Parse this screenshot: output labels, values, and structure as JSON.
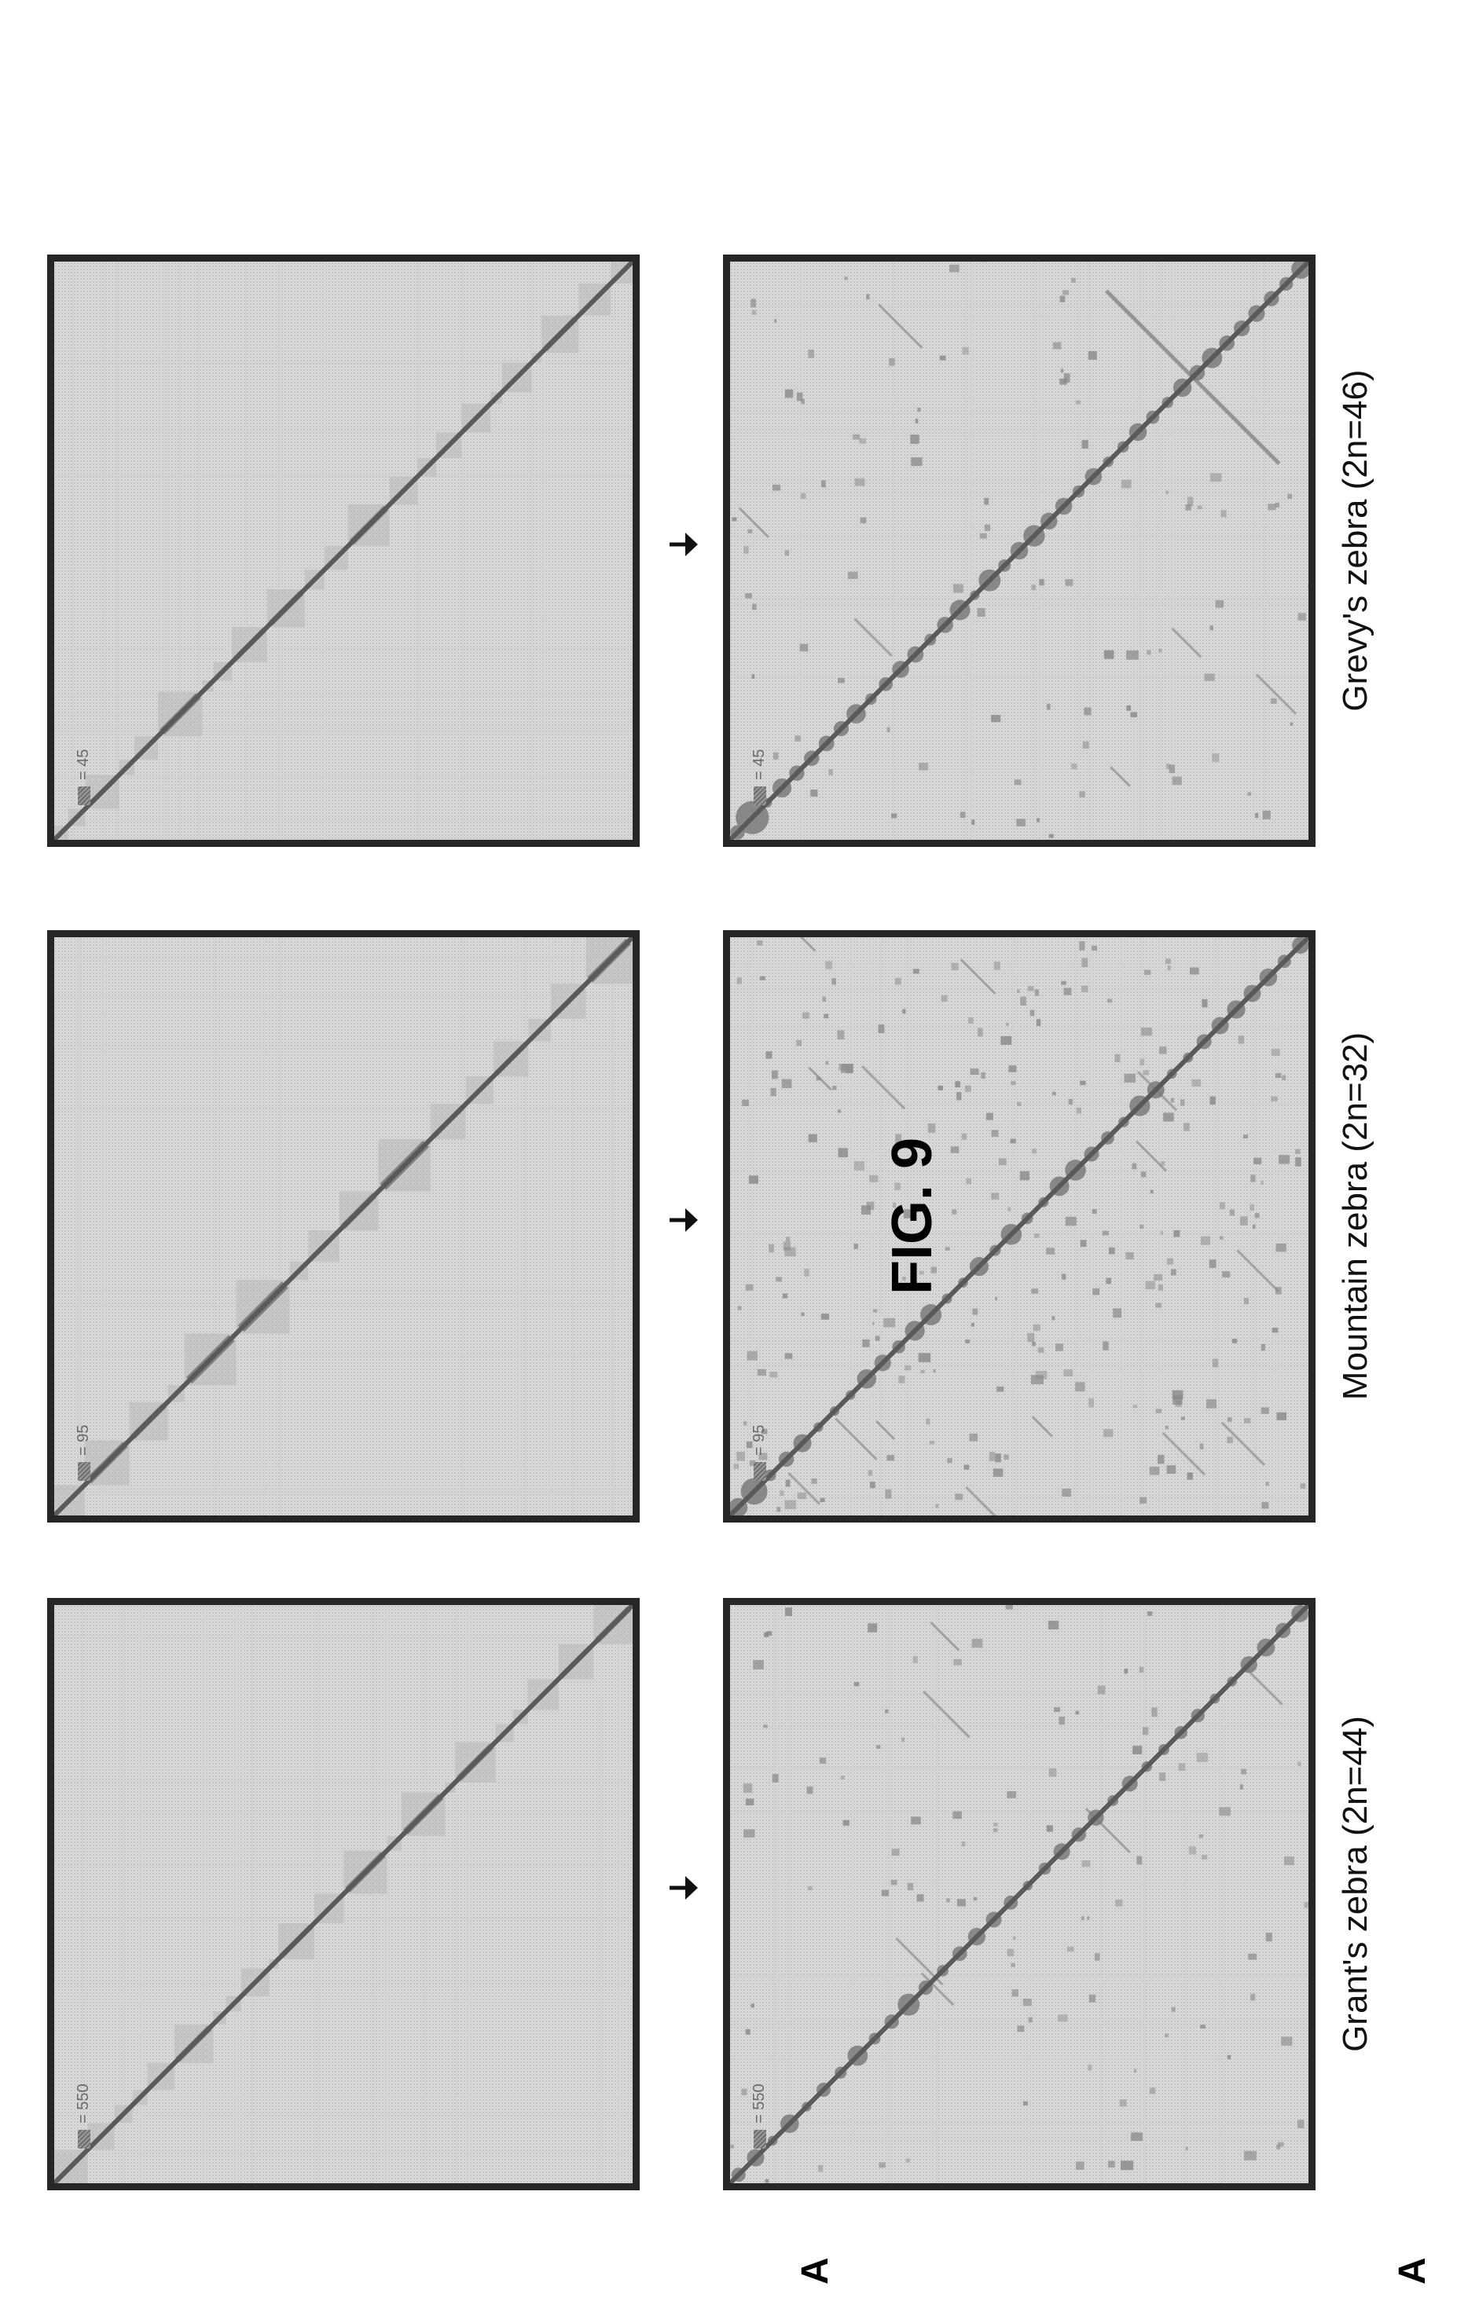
{
  "panel_letters": [
    "A",
    "A"
  ],
  "figure_label": "FIG. 9",
  "panels": [
    {
      "title": "Grant's zebra (2n=44)",
      "scale": "= 550"
    },
    {
      "title": "Mountain zebra (2n=32)",
      "scale": "= 95"
    },
    {
      "title": "Grevy's zebra (2n=46)",
      "scale": "= 45"
    }
  ],
  "colors": {
    "frame": "#262626",
    "background": "#dedede",
    "diagonal": "#7a7a7a",
    "contacts": "#8a8a8a"
  }
}
